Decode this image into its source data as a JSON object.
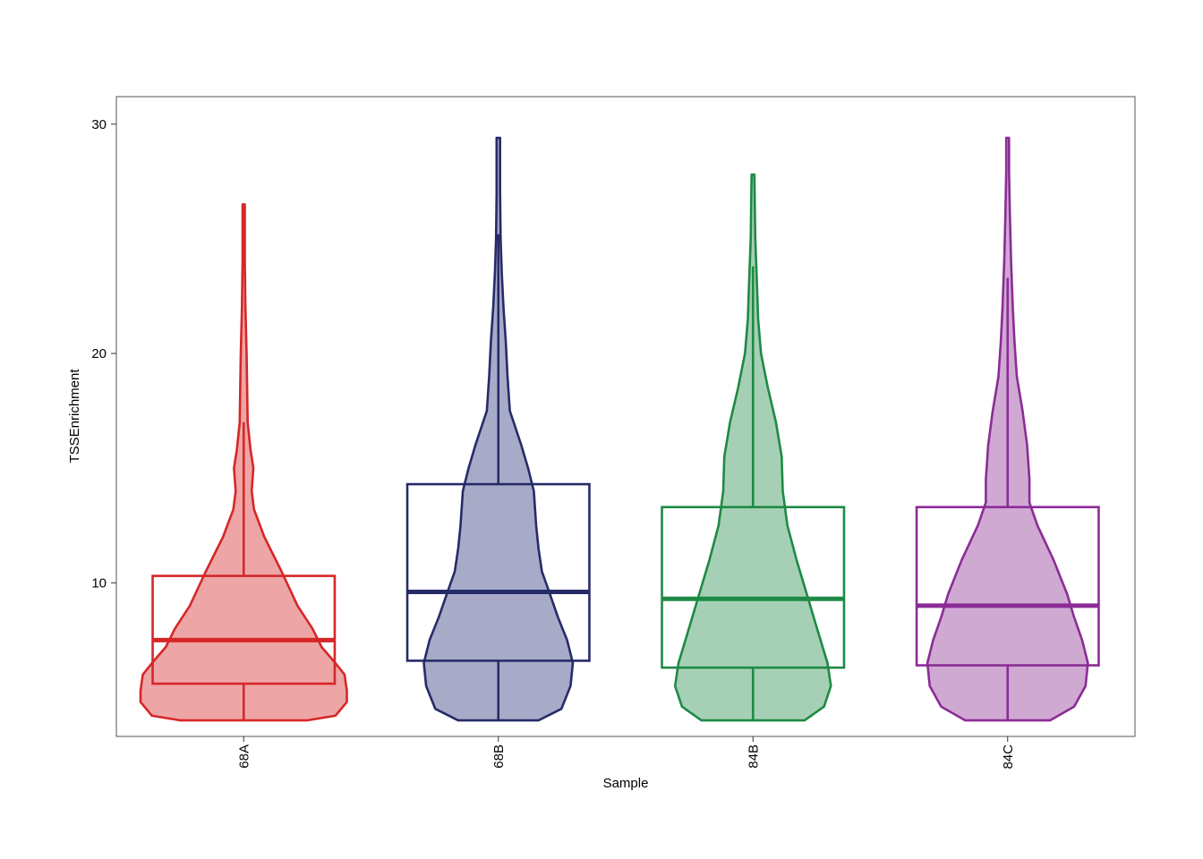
{
  "chart_data": {
    "type": "violin",
    "title": "",
    "xlabel": "Sample",
    "ylabel": "TSSEnrichment",
    "ylim": [
      3.3,
      31.2
    ],
    "yticks": [
      10,
      20,
      30
    ],
    "ytick_labels": [
      "10",
      "20",
      "30"
    ],
    "grid": false,
    "legend": "none",
    "series": [
      {
        "category": "68A",
        "color": "#D62728",
        "fill": "#EEA5A6",
        "box": {
          "whisker_low": 4.0,
          "q1": 5.6,
          "median": 7.5,
          "q3": 10.3,
          "whisker_high": 17.0
        },
        "max": 26.5,
        "density": [
          [
            4.0,
            0.55
          ],
          [
            4.2,
            0.8
          ],
          [
            4.8,
            0.9
          ],
          [
            5.3,
            0.9
          ],
          [
            6.0,
            0.88
          ],
          [
            6.5,
            0.8
          ],
          [
            7.2,
            0.68
          ],
          [
            8.0,
            0.6
          ],
          [
            9.0,
            0.47
          ],
          [
            10.5,
            0.33
          ],
          [
            12.0,
            0.18
          ],
          [
            13.2,
            0.09
          ],
          [
            14.0,
            0.07
          ],
          [
            15.0,
            0.085
          ],
          [
            15.8,
            0.06
          ],
          [
            17.0,
            0.035
          ],
          [
            18.5,
            0.03
          ],
          [
            20.0,
            0.025
          ],
          [
            22.0,
            0.015
          ],
          [
            24.0,
            0.01
          ],
          [
            26.5,
            0.01
          ]
        ]
      },
      {
        "category": "68B",
        "color": "#262B68",
        "fill": "#A8ABC8",
        "box": {
          "whisker_low": 4.0,
          "q1": 6.6,
          "median": 9.6,
          "q3": 14.3,
          "whisker_high": 25.2
        },
        "max": 29.4,
        "density": [
          [
            4.0,
            0.35
          ],
          [
            4.5,
            0.55
          ],
          [
            5.5,
            0.63
          ],
          [
            6.5,
            0.65
          ],
          [
            7.5,
            0.6
          ],
          [
            8.5,
            0.52
          ],
          [
            9.5,
            0.45
          ],
          [
            10.5,
            0.38
          ],
          [
            11.5,
            0.35
          ],
          [
            12.5,
            0.33
          ],
          [
            14.0,
            0.31
          ],
          [
            15.0,
            0.26
          ],
          [
            16.0,
            0.2
          ],
          [
            17.5,
            0.1
          ],
          [
            19.0,
            0.08
          ],
          [
            20.5,
            0.065
          ],
          [
            22.0,
            0.045
          ],
          [
            23.5,
            0.03
          ],
          [
            25.0,
            0.02
          ],
          [
            27.0,
            0.015
          ],
          [
            29.4,
            0.015
          ]
        ]
      },
      {
        "category": "84B",
        "color": "#1E8A45",
        "fill": "#A6D0B5",
        "box": {
          "whisker_low": 4.0,
          "q1": 6.3,
          "median": 9.3,
          "q3": 13.3,
          "whisker_high": 23.8
        },
        "max": 27.8,
        "density": [
          [
            4.0,
            0.45
          ],
          [
            4.6,
            0.62
          ],
          [
            5.5,
            0.68
          ],
          [
            6.5,
            0.65
          ],
          [
            8.0,
            0.56
          ],
          [
            9.5,
            0.47
          ],
          [
            11.0,
            0.38
          ],
          [
            12.5,
            0.3
          ],
          [
            14.0,
            0.26
          ],
          [
            15.5,
            0.25
          ],
          [
            17.0,
            0.2
          ],
          [
            18.5,
            0.13
          ],
          [
            20.0,
            0.07
          ],
          [
            21.5,
            0.045
          ],
          [
            23.0,
            0.035
          ],
          [
            25.0,
            0.02
          ],
          [
            27.8,
            0.012
          ]
        ]
      },
      {
        "category": "84C",
        "color": "#8B2C96",
        "fill": "#D0A9D3",
        "box": {
          "whisker_low": 4.0,
          "q1": 6.4,
          "median": 9.0,
          "q3": 13.3,
          "whisker_high": 23.3
        },
        "max": 29.4,
        "density": [
          [
            4.0,
            0.37
          ],
          [
            4.6,
            0.58
          ],
          [
            5.5,
            0.68
          ],
          [
            6.5,
            0.7
          ],
          [
            7.5,
            0.65
          ],
          [
            8.5,
            0.58
          ],
          [
            9.5,
            0.52
          ],
          [
            11.0,
            0.4
          ],
          [
            12.5,
            0.26
          ],
          [
            13.5,
            0.19
          ],
          [
            14.5,
            0.19
          ],
          [
            16.0,
            0.17
          ],
          [
            17.5,
            0.13
          ],
          [
            19.0,
            0.08
          ],
          [
            20.5,
            0.06
          ],
          [
            22.0,
            0.045
          ],
          [
            24.0,
            0.03
          ],
          [
            26.0,
            0.02
          ],
          [
            28.0,
            0.012
          ],
          [
            29.4,
            0.012
          ]
        ]
      }
    ]
  }
}
